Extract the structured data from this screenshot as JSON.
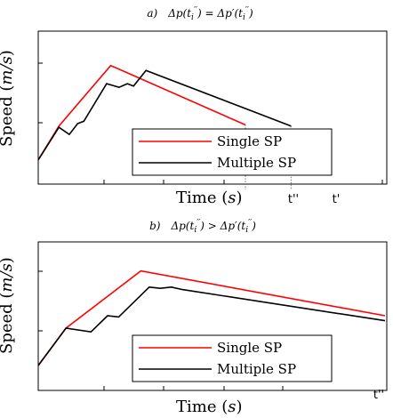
{
  "chart_data": [
    {
      "type": "line",
      "title": "a)   Δp(t_i'') = Δp'(t_i'')",
      "xlabel": "Time (s)",
      "ylabel": "Speed (m/s)",
      "x_tick_labels": [
        "t''",
        "t'"
      ],
      "legend": {
        "placement": "bottom-center",
        "entries": [
          "Single SP",
          "Multiple SP"
        ]
      },
      "series": [
        {
          "name": "Single SP",
          "color": "#ff0000",
          "points": [
            [
              0.0,
              0.2
            ],
            [
              0.1,
              0.48
            ],
            [
              0.35,
              0.98
            ],
            [
              1.0,
              0.49
            ]
          ]
        },
        {
          "name": "Multiple SP",
          "color": "#000000",
          "points": [
            [
              0.0,
              0.2
            ],
            [
              0.1,
              0.47
            ],
            [
              0.15,
              0.41
            ],
            [
              0.19,
              0.5
            ],
            [
              0.22,
              0.52
            ],
            [
              0.33,
              0.83
            ],
            [
              0.39,
              0.8
            ],
            [
              0.43,
              0.83
            ],
            [
              0.46,
              0.81
            ],
            [
              0.52,
              0.94
            ],
            [
              1.22,
              0.48
            ]
          ]
        }
      ],
      "vlines": [
        1.0,
        1.22
      ]
    },
    {
      "type": "line",
      "title": "b)   Δp(t_i'') > Δp'(t_i'')",
      "xlabel": "Time (s)",
      "ylabel": "Speed (m/s)",
      "x_tick_labels": [
        "t''"
      ],
      "legend": {
        "placement": "bottom-center",
        "entries": [
          "Single SP",
          "Multiple SP"
        ]
      },
      "series": [
        {
          "name": "Single SP",
          "color": "#ff0000",
          "points": [
            [
              0.0,
              0.2
            ],
            [
              0.1,
              0.5
            ],
            [
              0.37,
              0.96
            ],
            [
              1.25,
              0.6
            ]
          ]
        },
        {
          "name": "Multiple SP",
          "color": "#000000",
          "points": [
            [
              0.0,
              0.2
            ],
            [
              0.1,
              0.5
            ],
            [
              0.19,
              0.47
            ],
            [
              0.25,
              0.6
            ],
            [
              0.29,
              0.59
            ],
            [
              0.4,
              0.83
            ],
            [
              0.44,
              0.82
            ],
            [
              0.48,
              0.83
            ],
            [
              0.52,
              0.81
            ],
            [
              1.25,
              0.56
            ]
          ]
        }
      ],
      "vlines": []
    }
  ]
}
